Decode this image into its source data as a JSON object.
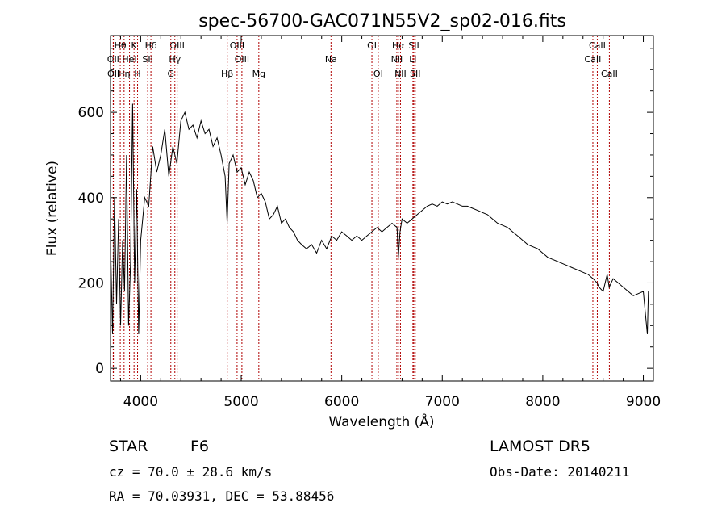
{
  "chart_data": {
    "type": "line",
    "title": "spec-56700-GAC071N55V2_sp02-016.fits",
    "xlabel": "Wavelength (Å)",
    "ylabel": "Flux (relative)",
    "xlim": [
      3700,
      9100
    ],
    "ylim": [
      -30,
      780
    ],
    "xticks": [
      4000,
      5000,
      6000,
      7000,
      8000,
      9000
    ],
    "yticks": [
      0,
      200,
      400,
      600
    ],
    "grid": false,
    "series": [
      {
        "x": [
          3700,
          3720,
          3740,
          3760,
          3780,
          3800,
          3820,
          3840,
          3860,
          3880,
          3900,
          3920,
          3940,
          3960,
          3980,
          4000,
          4040,
          4080,
          4120,
          4160,
          4200,
          4240,
          4280,
          4320,
          4360,
          4400,
          4440,
          4480,
          4520,
          4560,
          4600,
          4640,
          4680,
          4720,
          4760,
          4800,
          4840,
          4860,
          4880,
          4920,
          4960,
          5000,
          5040,
          5080,
          5120,
          5160,
          5200,
          5240,
          5280,
          5320,
          5360,
          5400,
          5440,
          5480,
          5520,
          5560,
          5600,
          5650,
          5700,
          5750,
          5800,
          5850,
          5900,
          5950,
          6000,
          6050,
          6100,
          6150,
          6200,
          6250,
          6300,
          6350,
          6400,
          6450,
          6500,
          6550,
          6563,
          6580,
          6600,
          6650,
          6700,
          6750,
          6800,
          6850,
          6900,
          6950,
          7000,
          7050,
          7100,
          7150,
          7200,
          7250,
          7300,
          7350,
          7400,
          7450,
          7500,
          7550,
          7600,
          7650,
          7700,
          7750,
          7800,
          7850,
          7900,
          7950,
          8000,
          8050,
          8100,
          8150,
          8200,
          8250,
          8300,
          8350,
          8400,
          8450,
          8500,
          8540,
          8560,
          8600,
          8640,
          8660,
          8700,
          8750,
          8800,
          8850,
          8900,
          8950,
          9000,
          9040,
          9050
        ],
        "values": [
          300,
          80,
          400,
          150,
          350,
          100,
          300,
          180,
          500,
          100,
          250,
          620,
          200,
          420,
          80,
          300,
          400,
          380,
          520,
          460,
          500,
          560,
          450,
          520,
          480,
          580,
          600,
          560,
          570,
          540,
          580,
          550,
          560,
          520,
          540,
          500,
          450,
          340,
          480,
          500,
          460,
          470,
          430,
          460,
          440,
          400,
          410,
          390,
          350,
          360,
          380,
          340,
          350,
          330,
          320,
          300,
          290,
          280,
          290,
          270,
          300,
          280,
          310,
          300,
          320,
          310,
          300,
          310,
          300,
          310,
          320,
          330,
          320,
          330,
          340,
          330,
          260,
          320,
          350,
          340,
          350,
          360,
          370,
          380,
          385,
          380,
          390,
          385,
          390,
          385,
          380,
          380,
          375,
          370,
          365,
          360,
          350,
          340,
          335,
          330,
          320,
          310,
          300,
          290,
          285,
          280,
          270,
          260,
          255,
          250,
          245,
          240,
          235,
          230,
          225,
          220,
          210,
          200,
          190,
          180,
          220,
          190,
          210,
          200,
          190,
          180,
          170,
          175,
          180,
          80,
          180
        ]
      }
    ],
    "lines": [
      {
        "label": "Hθ",
        "wl": 3797,
        "row": 1
      },
      {
        "label": "OII",
        "wl": 3727,
        "row": 2
      },
      {
        "label": "OII",
        "wl": 3729,
        "row": 3
      },
      {
        "label": "K",
        "wl": 3934,
        "row": 1
      },
      {
        "label": "HeI",
        "wl": 3889,
        "row": 2
      },
      {
        "label": "Hη",
        "wl": 3835,
        "row": 3
      },
      {
        "label": "H",
        "wl": 3969,
        "row": 3
      },
      {
        "label": "Hδ",
        "wl": 4102,
        "row": 1
      },
      {
        "label": "SII",
        "wl": 4070,
        "row": 2
      },
      {
        "label": "OIII",
        "wl": 4363,
        "row": 1
      },
      {
        "label": "Hγ",
        "wl": 4340,
        "row": 2
      },
      {
        "label": "G",
        "wl": 4300,
        "row": 3
      },
      {
        "label": "Hβ",
        "wl": 4861,
        "row": 3
      },
      {
        "label": "OIII",
        "wl": 4959,
        "row": 1
      },
      {
        "label": "OIII",
        "wl": 5007,
        "row": 2
      },
      {
        "label": "Mg",
        "wl": 5175,
        "row": 3
      },
      {
        "label": "Na",
        "wl": 5893,
        "row": 2
      },
      {
        "label": "OI",
        "wl": 6300,
        "row": 1
      },
      {
        "label": "OI",
        "wl": 6363,
        "row": 3
      },
      {
        "label": "Hα",
        "wl": 6563,
        "row": 1
      },
      {
        "label": "NII",
        "wl": 6548,
        "row": 2
      },
      {
        "label": "NII",
        "wl": 6584,
        "row": 3
      },
      {
        "label": "SII",
        "wl": 6717,
        "row": 1
      },
      {
        "label": "Li",
        "wl": 6708,
        "row": 2
      },
      {
        "label": "SII",
        "wl": 6731,
        "row": 3
      },
      {
        "label": "CaII",
        "wl": 8542,
        "row": 1
      },
      {
        "label": "CaII",
        "wl": 8498,
        "row": 2
      },
      {
        "label": "CaII",
        "wl": 8662,
        "row": 3
      }
    ]
  },
  "info": {
    "objtype": "STAR",
    "subclass": "F6",
    "survey": "LAMOST DR5",
    "cz": "cz = 70.0 ± 28.6 km/s",
    "obsdate": "Obs-Date: 20140211",
    "coords": "RA =  70.03931, DEC =  53.88456"
  },
  "colors": {
    "spectrum": "#000000",
    "lines": "#b00000"
  }
}
